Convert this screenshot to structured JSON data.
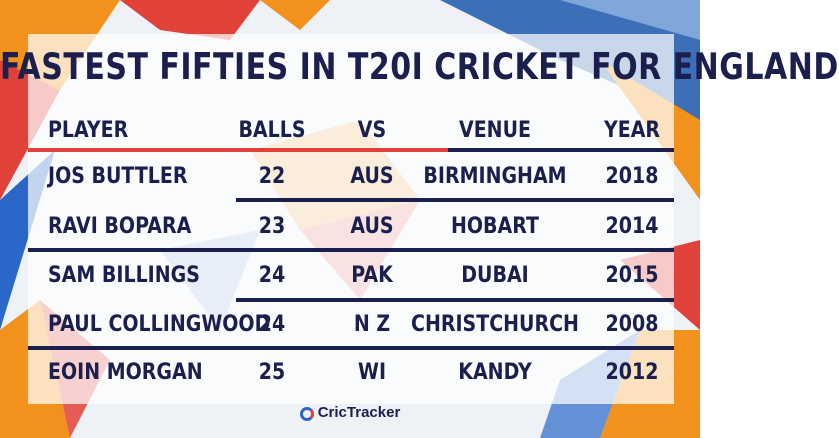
{
  "title": "FASTEST FIFTIES IN T20I CRICKET FOR ENGLAND",
  "headers": {
    "player": "PLAYER",
    "balls": "BALLS",
    "vs": "VS",
    "venue": "VENUE",
    "year": "YEAR"
  },
  "rows": [
    {
      "player": "JOS BUTTLER",
      "balls": "22",
      "vs": "AUS",
      "venue": "BIRMINGHAM",
      "year": "2018"
    },
    {
      "player": "RAVI BOPARA",
      "balls": "23",
      "vs": "AUS",
      "venue": "HOBART",
      "year": "2014"
    },
    {
      "player": "SAM BILLINGS",
      "balls": "24",
      "vs": "PAK",
      "venue": "DUBAI",
      "year": "2015"
    },
    {
      "player": "PAUL COLLINGWOOD",
      "balls": "24",
      "vs": "N Z",
      "venue": "CHRISTCHURCH",
      "year": "2008"
    },
    {
      "player": "EOIN MORGAN",
      "balls": "25",
      "vs": "WI",
      "venue": "KANDY",
      "year": "2012"
    }
  ],
  "footer": {
    "brand": "CricTracker"
  },
  "colors": {
    "navy": "#1b1f4d",
    "red": "#e0423a",
    "orange": "#f2921c",
    "blue": "#2a67c8"
  }
}
